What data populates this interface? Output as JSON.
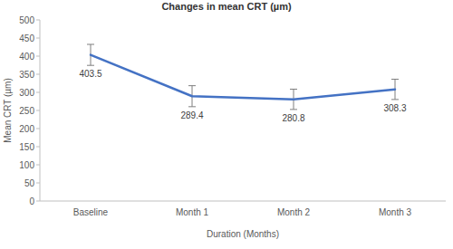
{
  "chart_data": {
    "type": "line",
    "title": "Changes in mean CRT (µm)",
    "x_label": "Duration (Months)",
    "y_label": "Mean CRT (µm)",
    "categories": [
      "Baseline",
      "Month 1",
      "Month 2",
      "Month 3"
    ],
    "values": [
      403.5,
      289.4,
      280.8,
      308.3
    ],
    "errors": [
      29,
      29,
      28,
      28
    ],
    "color": "#4472c4",
    "ylim": [
      0,
      500
    ],
    "yticks": [
      0,
      50,
      100,
      150,
      200,
      250,
      300,
      350,
      400,
      450,
      500
    ],
    "grid": false,
    "data_labels": true
  }
}
